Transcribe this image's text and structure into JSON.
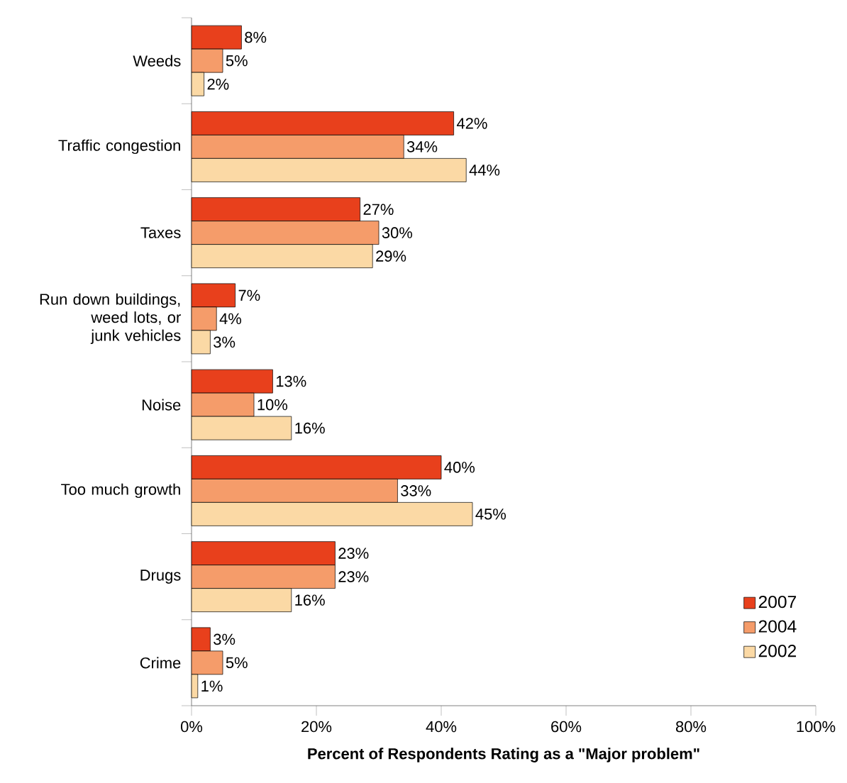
{
  "chart_data": {
    "type": "bar",
    "orientation": "horizontal",
    "xlabel": "Percent of Respondents Rating as a \"Major problem\"",
    "categories": [
      "Weeds",
      "Traffic congestion",
      "Taxes",
      "Run down buildings, weed lots, or junk vehicles",
      "Noise",
      "Too much growth",
      "Drugs",
      "Crime"
    ],
    "series": [
      {
        "name": "2007",
        "color": "#e8401c",
        "values": [
          8,
          42,
          27,
          7,
          13,
          40,
          23,
          3
        ],
        "value_labels": [
          "8%",
          "42%",
          "27%",
          "7%",
          "13%",
          "40%",
          "23%",
          "3%"
        ]
      },
      {
        "name": "2004",
        "color": "#f59c6a",
        "values": [
          5,
          34,
          30,
          4,
          10,
          33,
          23,
          5
        ],
        "value_labels": [
          "5%",
          "34%",
          "30%",
          "4%",
          "10%",
          "33%",
          "23%",
          "5%"
        ]
      },
      {
        "name": "2002",
        "color": "#fbd9a5",
        "values": [
          2,
          44,
          29,
          3,
          16,
          45,
          16,
          1
        ],
        "value_labels": [
          "2%",
          "44%",
          "29%",
          "3%",
          "16%",
          "45%",
          "16%",
          "1%"
        ]
      }
    ],
    "xlim": [
      0,
      100
    ],
    "xticks": [
      {
        "value": 0,
        "label": "0%"
      },
      {
        "value": 20,
        "label": "20%"
      },
      {
        "value": 40,
        "label": "40%"
      },
      {
        "value": 60,
        "label": "60%"
      },
      {
        "value": 80,
        "label": "80%"
      },
      {
        "value": 100,
        "label": "100%"
      }
    ],
    "legend": "bottom right",
    "grid": false
  }
}
